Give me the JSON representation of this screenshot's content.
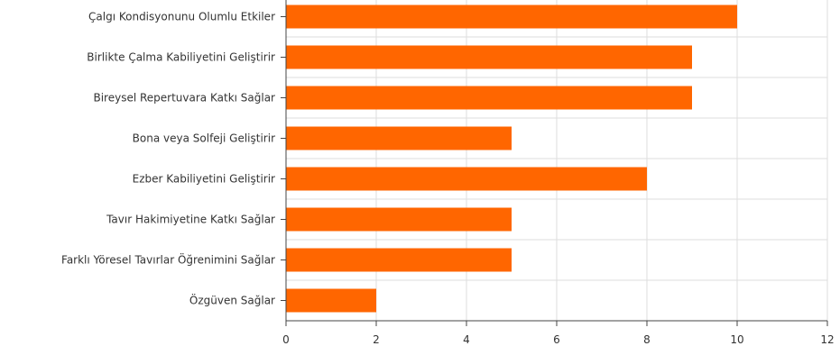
{
  "colors": {
    "bar": "#ff6600",
    "grid": "#dddddd",
    "axis": "#444444",
    "text": "#333333"
  },
  "chart_data": {
    "type": "bar",
    "orientation": "horizontal",
    "title": "",
    "xlabel": "",
    "ylabel": "",
    "categories": [
      "Çalgı Kondisyonunu Olumlu Etkiler",
      "Birlikte Çalma Kabiliyetini Geliştirir",
      "Bireysel Repertuvara Katkı Sağlar",
      "Bona veya Solfeji Geliştirir",
      "Ezber Kabiliyetini Geliştirir",
      "Tavır Hakimiyetine Katkı Sağlar",
      "Farklı Yöresel Tavırlar Öğrenimini Sağlar",
      "Özgüven Sağlar"
    ],
    "values": [
      10,
      9,
      9,
      5,
      8,
      5,
      5,
      2
    ],
    "xlim": [
      0,
      12
    ],
    "xticks": [
      "0",
      "2",
      "4",
      "6",
      "8",
      "10",
      "12"
    ],
    "grid": true,
    "legend": "none"
  }
}
